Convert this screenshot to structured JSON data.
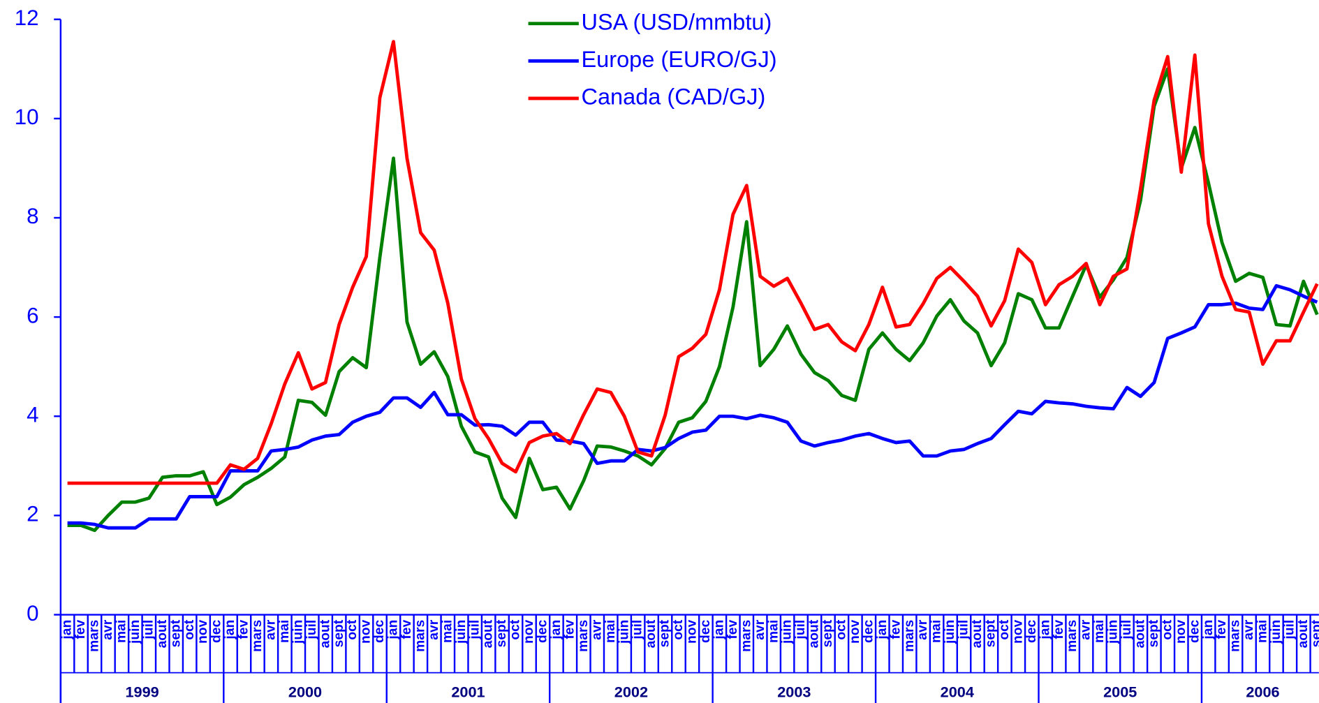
{
  "chart_data": {
    "type": "line",
    "categories": [
      "jan",
      "fev",
      "mars",
      "avr",
      "mai",
      "juin",
      "juil",
      "aout",
      "sept",
      "oct",
      "nov",
      "dec",
      "jan",
      "fev",
      "mars",
      "avr",
      "mai",
      "juin",
      "juil",
      "aout",
      "sept",
      "oct",
      "nov",
      "dec",
      "jan",
      "fev",
      "mars",
      "avr",
      "mai",
      "juin",
      "juil",
      "aout",
      "sept",
      "oct",
      "nov",
      "dec",
      "jan",
      "fev",
      "mars",
      "avr",
      "mai",
      "juin",
      "juil",
      "aout",
      "sept",
      "oct",
      "nov",
      "dec",
      "jan",
      "fev",
      "mars",
      "avr",
      "mai",
      "juin",
      "juil",
      "aout",
      "sept",
      "oct",
      "nov",
      "dec",
      "jan",
      "fev",
      "mars",
      "avr",
      "mai",
      "juin",
      "juil",
      "aout",
      "sept",
      "oct",
      "nov",
      "dec",
      "jan",
      "fev",
      "mars",
      "avr",
      "mai",
      "juin",
      "juil",
      "aout",
      "sept",
      "oct",
      "nov",
      "dec",
      "jan",
      "fev",
      "mars",
      "avr",
      "mai",
      "juin",
      "juil",
      "aout",
      "sept"
    ],
    "years": [
      "1999",
      "2000",
      "2001",
      "2002",
      "2003",
      "2004",
      "2005",
      "2006"
    ],
    "series": [
      {
        "name": "USA (USD/mmbtu)",
        "color": "#008000",
        "values": [
          1.8,
          1.8,
          1.7,
          2.0,
          2.27,
          2.27,
          2.35,
          2.77,
          2.8,
          2.8,
          2.88,
          2.22,
          2.37,
          2.62,
          2.77,
          2.95,
          3.18,
          4.32,
          4.28,
          4.02,
          4.9,
          5.18,
          4.98,
          7.2,
          9.2,
          5.9,
          5.05,
          5.3,
          4.8,
          3.8,
          3.28,
          3.18,
          2.35,
          1.96,
          3.15,
          2.52,
          2.57,
          2.13,
          2.7,
          3.4,
          3.38,
          3.3,
          3.2,
          3.02,
          3.35,
          3.88,
          3.97,
          4.3,
          5.0,
          6.2,
          7.92,
          5.02,
          5.35,
          5.82,
          5.25,
          4.88,
          4.72,
          4.42,
          4.32,
          5.35,
          5.68,
          5.35,
          5.12,
          5.48,
          6.02,
          6.35,
          5.92,
          5.68,
          5.02,
          5.48,
          6.47,
          6.35,
          5.78,
          5.78,
          6.42,
          7.05,
          6.4,
          6.75,
          7.2,
          8.35,
          10.25,
          11.0,
          9.0,
          9.82,
          8.7,
          7.5,
          6.72,
          6.88,
          6.8,
          5.85,
          5.82,
          6.72,
          6.05
        ]
      },
      {
        "name": "Europe (EURO/GJ)",
        "color": "#0000ff",
        "values": [
          1.85,
          1.85,
          1.82,
          1.75,
          1.75,
          1.75,
          1.93,
          1.93,
          1.93,
          2.38,
          2.38,
          2.38,
          2.9,
          2.9,
          2.9,
          3.3,
          3.33,
          3.38,
          3.52,
          3.6,
          3.63,
          3.88,
          4.0,
          4.08,
          4.37,
          4.37,
          4.18,
          4.48,
          4.03,
          4.03,
          3.82,
          3.83,
          3.8,
          3.62,
          3.88,
          3.88,
          3.52,
          3.5,
          3.45,
          3.05,
          3.1,
          3.1,
          3.33,
          3.3,
          3.37,
          3.55,
          3.68,
          3.72,
          4.0,
          4.0,
          3.95,
          4.02,
          3.97,
          3.88,
          3.5,
          3.4,
          3.47,
          3.52,
          3.6,
          3.65,
          3.55,
          3.47,
          3.5,
          3.2,
          3.2,
          3.3,
          3.33,
          3.45,
          3.55,
          3.83,
          4.1,
          4.05,
          4.3,
          4.27,
          4.25,
          4.2,
          4.17,
          4.15,
          4.58,
          4.4,
          4.68,
          5.57,
          5.68,
          5.8,
          6.25,
          6.25,
          6.28,
          6.18,
          6.15,
          6.63,
          6.55,
          6.42,
          6.3
        ]
      },
      {
        "name": "Canada (CAD/GJ)",
        "color": "#ff0000",
        "values": [
          2.65,
          2.65,
          2.65,
          2.65,
          2.65,
          2.65,
          2.65,
          2.65,
          2.65,
          2.65,
          2.65,
          2.65,
          3.02,
          2.93,
          3.15,
          3.85,
          4.65,
          5.28,
          4.55,
          4.68,
          5.85,
          6.6,
          7.22,
          10.42,
          11.55,
          9.2,
          7.7,
          7.35,
          6.28,
          4.75,
          3.95,
          3.55,
          3.05,
          2.88,
          3.47,
          3.6,
          3.65,
          3.45,
          4.03,
          4.55,
          4.48,
          4.0,
          3.28,
          3.2,
          4.02,
          5.2,
          5.37,
          5.65,
          6.55,
          8.07,
          8.65,
          6.82,
          6.62,
          6.78,
          6.28,
          5.75,
          5.85,
          5.5,
          5.32,
          5.85,
          6.6,
          5.8,
          5.85,
          6.27,
          6.78,
          7.0,
          6.72,
          6.42,
          5.82,
          6.33,
          7.37,
          7.1,
          6.25,
          6.65,
          6.82,
          7.08,
          6.25,
          6.82,
          6.97,
          8.58,
          10.37,
          11.25,
          8.92,
          11.28,
          7.88,
          6.82,
          6.15,
          6.1,
          5.05,
          5.52,
          5.52,
          6.1,
          6.67
        ]
      }
    ],
    "ylim": [
      0,
      12
    ],
    "yticks": [
      0,
      2,
      4,
      6,
      8,
      10,
      12
    ]
  }
}
